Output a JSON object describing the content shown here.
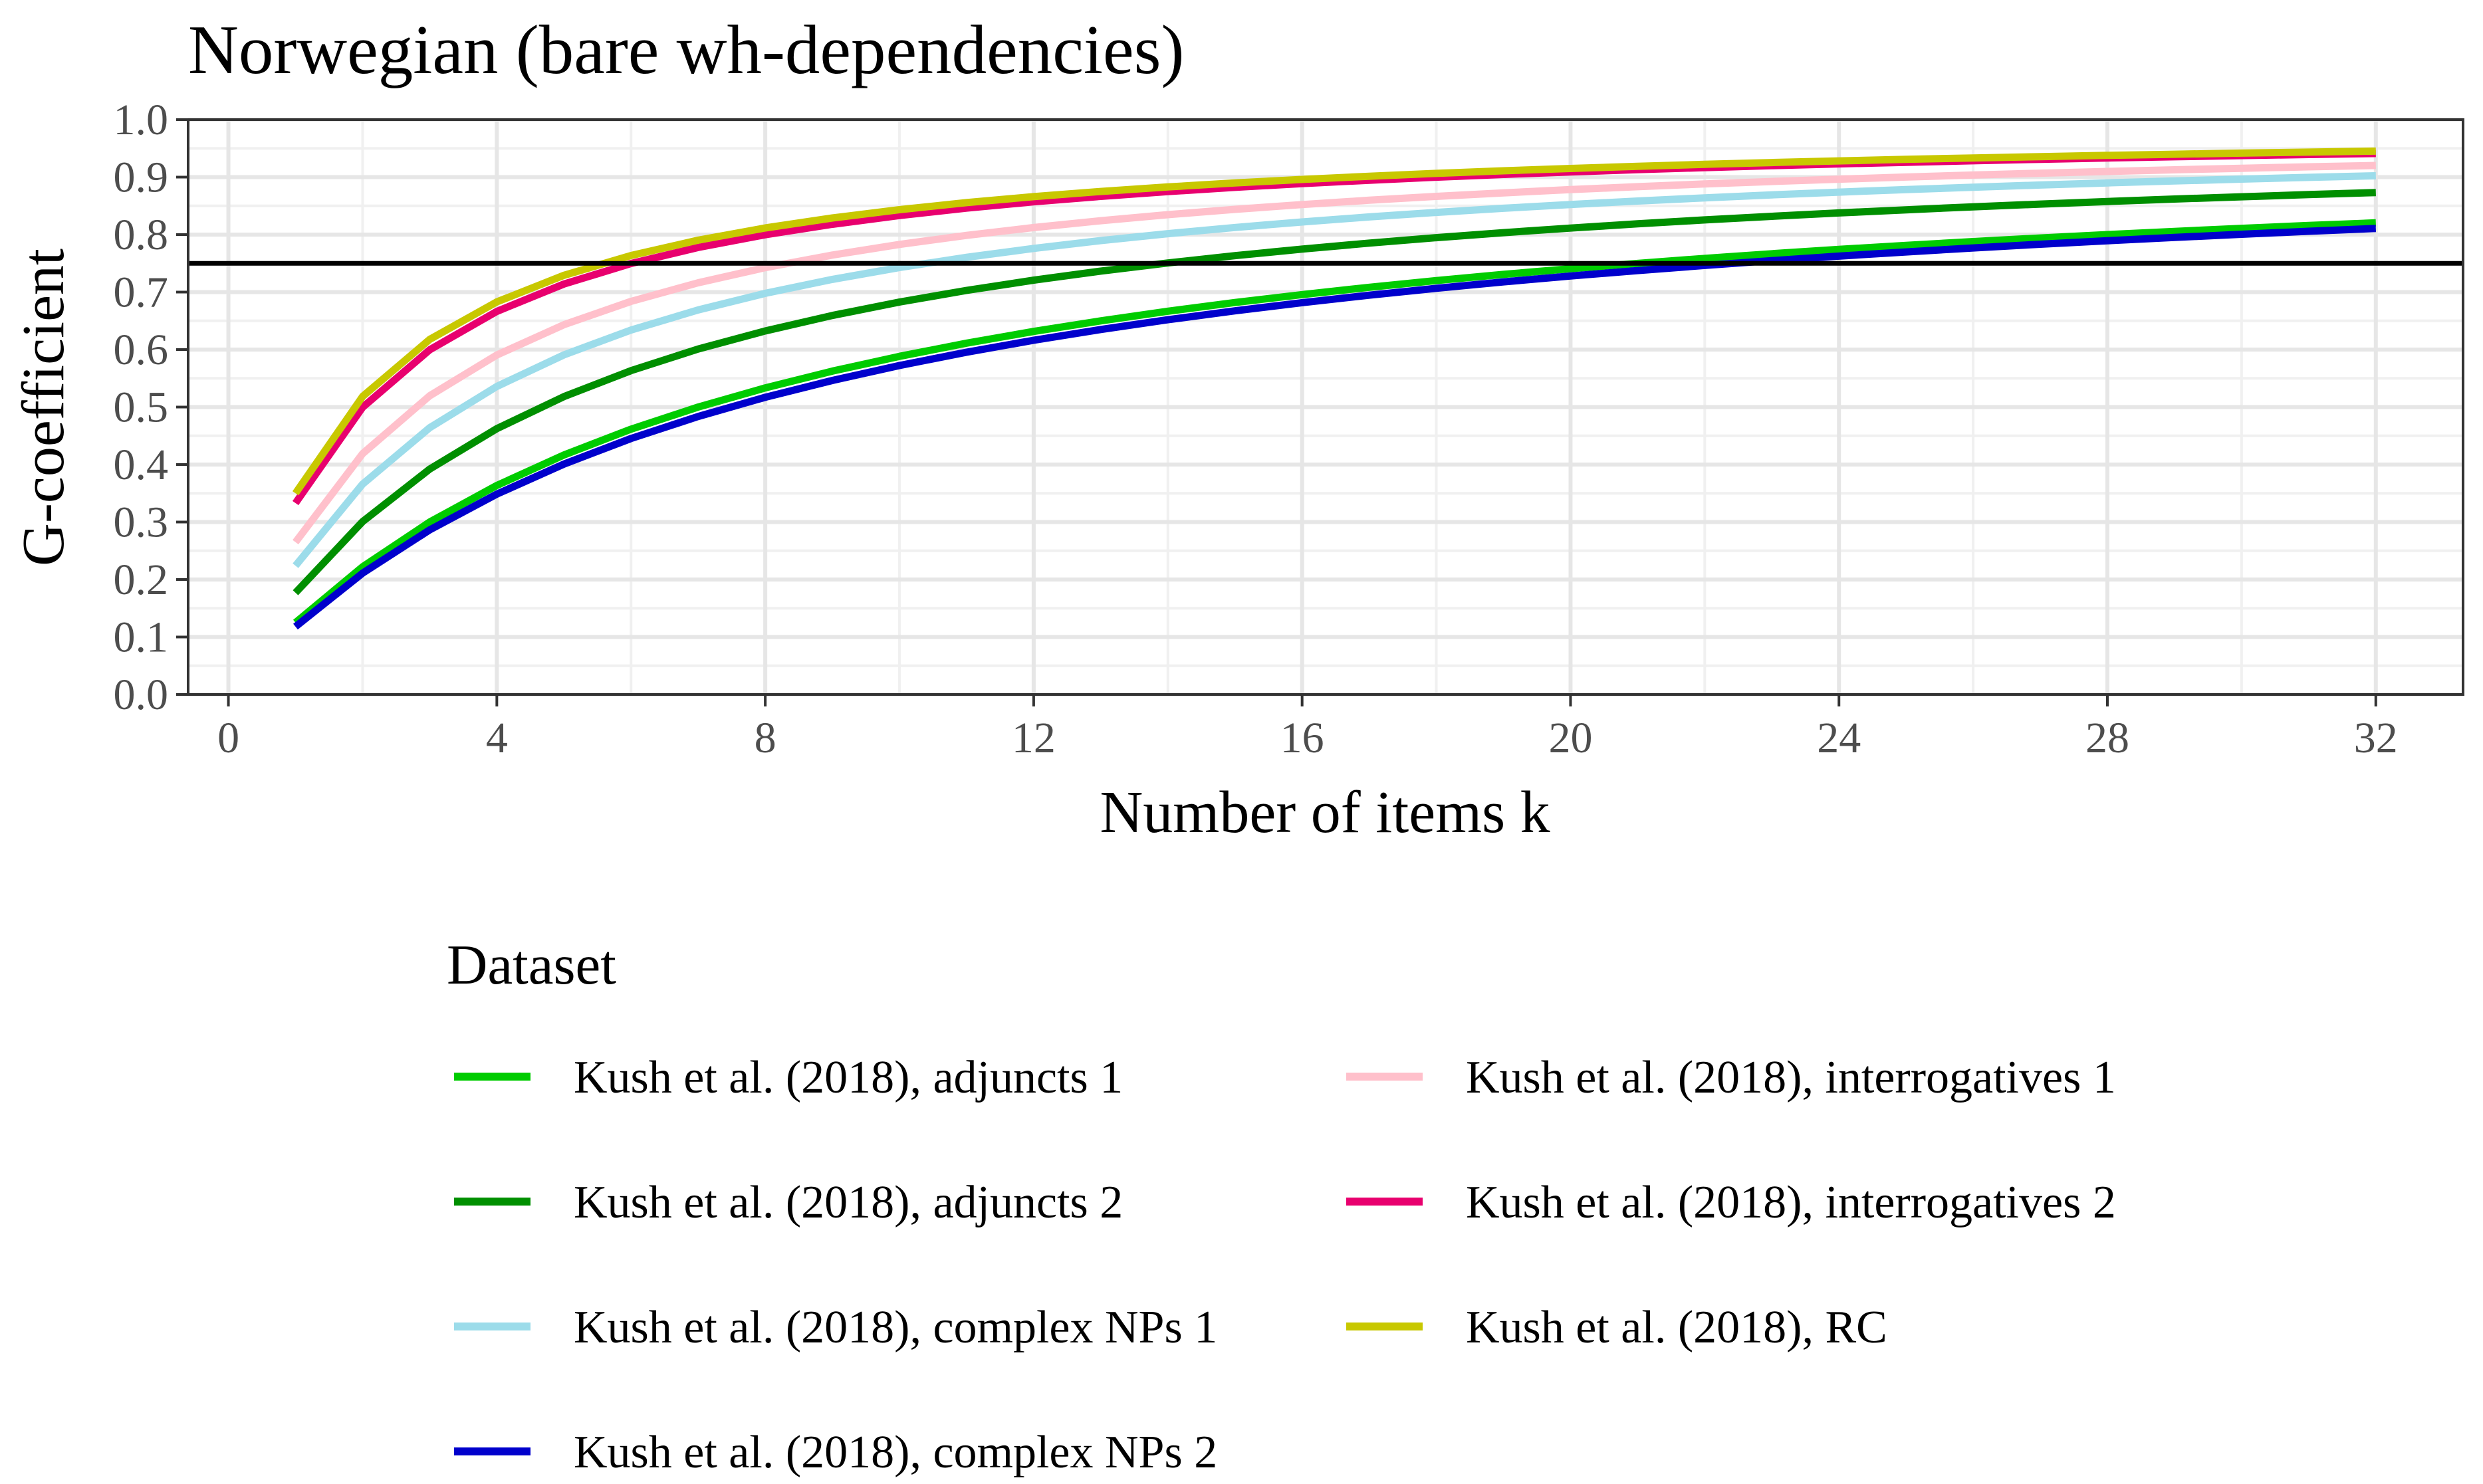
{
  "chart_data": {
    "type": "line",
    "title": "Norwegian (bare wh-dependencies)",
    "xlabel": "Number of items k",
    "ylabel": "G-coefficient",
    "xlim": [
      -0.6,
      33.3
    ],
    "ylim": [
      0.0,
      1.0
    ],
    "x_ticks": [
      0,
      4,
      8,
      12,
      16,
      20,
      24,
      28,
      32
    ],
    "x_tick_labels": [
      "0",
      "4",
      "8",
      "12",
      "16",
      "20",
      "24",
      "28",
      "32"
    ],
    "y_ticks": [
      0.0,
      0.1,
      0.2,
      0.3,
      0.4,
      0.5,
      0.6,
      0.7,
      0.8,
      0.9,
      1.0
    ],
    "y_tick_labels": [
      "0.0",
      "0.1",
      "0.2",
      "0.3",
      "0.4",
      "0.5",
      "0.6",
      "0.7",
      "0.8",
      "0.9",
      "1.0"
    ],
    "grid": true,
    "reference_line": {
      "y": 0.75,
      "color": "#000000"
    },
    "x": [
      1,
      2,
      3,
      4,
      5,
      6,
      7,
      8,
      9,
      10,
      11,
      12,
      13,
      14,
      15,
      16,
      17,
      18,
      19,
      20,
      21,
      22,
      23,
      24,
      25,
      26,
      27,
      28,
      29,
      30,
      31,
      32
    ],
    "series": [
      {
        "name": "Kush et al. (2018), adjuncts 1",
        "color": "#00cc00",
        "single_item_g": 0.125
      },
      {
        "name": "Kush et al. (2018), adjuncts 2",
        "color": "#008f00",
        "single_item_g": 0.177
      },
      {
        "name": "Kush et al. (2018), complex NPs 1",
        "color": "#9cdcea",
        "single_item_g": 0.224
      },
      {
        "name": "Kush et al. (2018), complex NPs 2",
        "color": "#0000cc",
        "single_item_g": 0.118
      },
      {
        "name": "Kush et al. (2018), interrogatives 1",
        "color": "#ffc0cb",
        "single_item_g": 0.265
      },
      {
        "name": "Kush et al. (2018), interrogatives 2",
        "color": "#e8006e",
        "single_item_g": 0.333
      },
      {
        "name": "Kush et al. (2018), RC",
        "color": "#c8c800",
        "single_item_g": 0.35
      }
    ],
    "legend": {
      "title": "Dataset",
      "placement": "bottom",
      "columns": [
        [
          0,
          1,
          2,
          3
        ],
        [
          4,
          5,
          6
        ]
      ]
    }
  }
}
